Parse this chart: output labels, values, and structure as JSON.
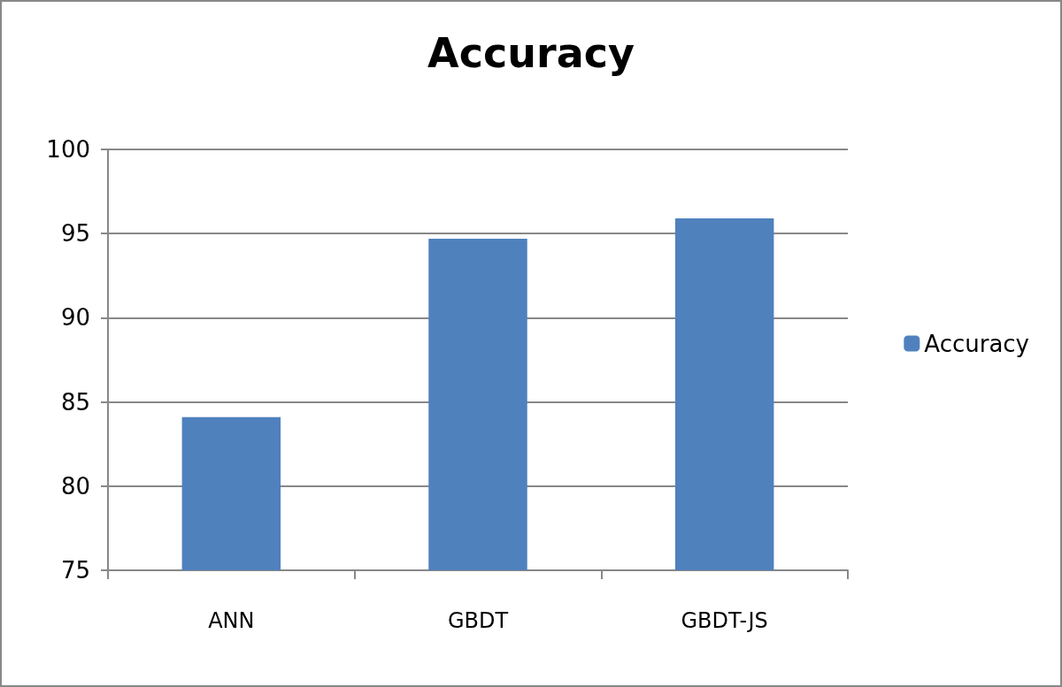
{
  "chart_data": {
    "type": "bar",
    "title": "Accuracy",
    "categories": [
      "ANN",
      "GBDT",
      "GBDT-JS"
    ],
    "series": [
      {
        "name": "Accuracy",
        "color": "#4f81bd",
        "values": [
          84.1,
          94.7,
          95.9
        ]
      }
    ],
    "ylim": [
      75,
      100
    ],
    "yticks": [
      75,
      80,
      85,
      90,
      95,
      100
    ],
    "grid": "y",
    "legend": "right"
  }
}
